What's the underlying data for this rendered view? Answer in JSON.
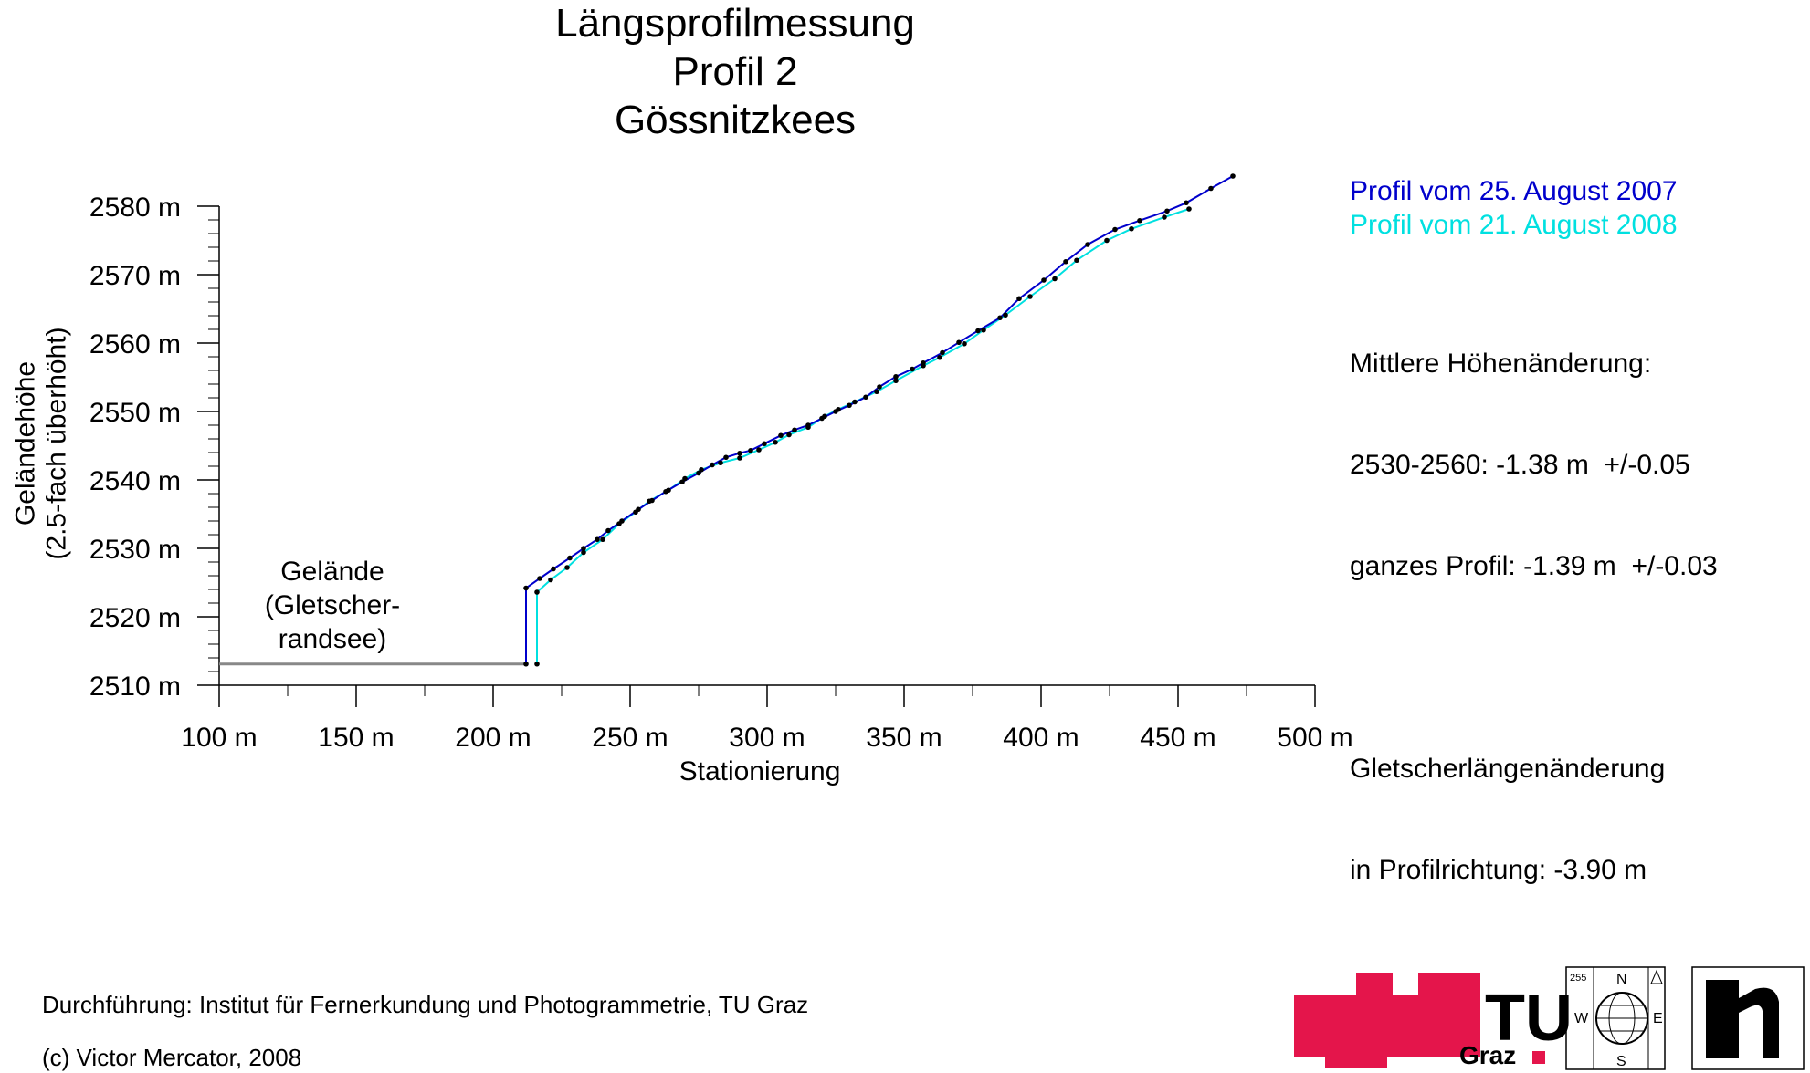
{
  "chart_data": {
    "type": "line",
    "title": [
      "Längsprofilmessung",
      "Profil 2",
      "Gössnitzkees"
    ],
    "xlabel": "Stationierung",
    "ylabel": [
      "Geländehöhe",
      "(2.5-fach überhöht)"
    ],
    "xlim": [
      100,
      500
    ],
    "ylim": [
      2510,
      2580
    ],
    "x_ticks": [
      100,
      150,
      200,
      250,
      300,
      350,
      400,
      450,
      500
    ],
    "x_tick_labels": [
      "100 m",
      "150 m",
      "200 m",
      "250 m",
      "300 m",
      "350 m",
      "400 m",
      "450 m",
      "500 m"
    ],
    "y_ticks": [
      2510,
      2520,
      2530,
      2540,
      2550,
      2560,
      2570,
      2580
    ],
    "y_tick_labels": [
      "2510 m",
      "2520 m",
      "2530 m",
      "2540 m",
      "2550 m",
      "2560 m",
      "2570 m",
      "2580 m"
    ],
    "grid": false,
    "legend_position": "top-right",
    "series": [
      {
        "name": "Profil vom 25. August 2007",
        "color": "#0000cc",
        "points": [
          [
            212,
            2513.1
          ],
          [
            212,
            2524.2
          ],
          [
            217,
            2525.6
          ],
          [
            222,
            2527.0
          ],
          [
            228,
            2528.6
          ],
          [
            233,
            2530.0
          ],
          [
            238,
            2531.3
          ],
          [
            242,
            2532.6
          ],
          [
            247,
            2534.0
          ],
          [
            253,
            2535.7
          ],
          [
            258,
            2537.0
          ],
          [
            263,
            2538.3
          ],
          [
            269,
            2539.7
          ],
          [
            275,
            2541.0
          ],
          [
            280,
            2542.2
          ],
          [
            285,
            2543.3
          ],
          [
            290,
            2543.9
          ],
          [
            294,
            2544.3
          ],
          [
            299,
            2545.3
          ],
          [
            305,
            2546.5
          ],
          [
            310,
            2547.3
          ],
          [
            315,
            2548.0
          ],
          [
            320,
            2549.0
          ],
          [
            325,
            2550.0
          ],
          [
            330,
            2550.9
          ],
          [
            336,
            2552.1
          ],
          [
            341,
            2553.6
          ],
          [
            347,
            2555.1
          ],
          [
            353,
            2556.2
          ],
          [
            357,
            2557.1
          ],
          [
            364,
            2558.6
          ],
          [
            370,
            2560.1
          ],
          [
            377,
            2561.8
          ],
          [
            385,
            2563.7
          ],
          [
            392,
            2566.5
          ],
          [
            401,
            2569.2
          ],
          [
            409,
            2571.9
          ],
          [
            417,
            2574.4
          ],
          [
            427,
            2576.6
          ],
          [
            436,
            2577.9
          ],
          [
            446,
            2579.3
          ],
          [
            453,
            2580.5
          ],
          [
            462,
            2582.6
          ],
          [
            470,
            2584.4
          ]
        ]
      },
      {
        "name": "Profil vom 21. August 2008",
        "color": "#00e0e0",
        "points": [
          [
            216,
            2513.1
          ],
          [
            216,
            2523.6
          ],
          [
            221,
            2525.4
          ],
          [
            227,
            2527.2
          ],
          [
            233,
            2529.4
          ],
          [
            240,
            2531.3
          ],
          [
            246,
            2533.6
          ],
          [
            252,
            2535.3
          ],
          [
            257,
            2536.9
          ],
          [
            264,
            2538.5
          ],
          [
            270,
            2540.2
          ],
          [
            276,
            2541.5
          ],
          [
            283,
            2542.5
          ],
          [
            290,
            2543.2
          ],
          [
            297,
            2544.4
          ],
          [
            303,
            2545.5
          ],
          [
            308,
            2546.6
          ],
          [
            315,
            2547.7
          ],
          [
            321,
            2549.3
          ],
          [
            326,
            2550.3
          ],
          [
            332,
            2551.4
          ],
          [
            340,
            2552.9
          ],
          [
            347,
            2554.5
          ],
          [
            357,
            2556.7
          ],
          [
            363,
            2557.9
          ],
          [
            372,
            2559.9
          ],
          [
            379,
            2561.9
          ],
          [
            387,
            2564.1
          ],
          [
            396,
            2566.8
          ],
          [
            405,
            2569.4
          ],
          [
            413,
            2572.1
          ],
          [
            424,
            2575.0
          ],
          [
            433,
            2576.7
          ],
          [
            445,
            2578.4
          ],
          [
            454,
            2579.6
          ]
        ]
      },
      {
        "name": "Gelände (Gletscher-randsee)",
        "color": "#888888",
        "points": [
          [
            100,
            2513.1
          ],
          [
            212,
            2513.1
          ]
        ]
      }
    ],
    "annotations": [
      "Gelände",
      "(Gletscher-",
      "randsee)"
    ],
    "info": {
      "mean_change_heading": "Mittlere Höhenänderung:",
      "range_line": "2530-2560: -1.38 m  +/-0.05",
      "profile_line": "ganzes Profil: -1.39 m  +/-0.03",
      "length_heading": "Gletscherlängenänderung",
      "length_line": "in Profilrichtung: -3.90 m"
    }
  },
  "footer": {
    "credit": "Durchführung: Institut für Fernerkundung und Photogrammetrie, TU Graz",
    "copyright": "(c) Victor Mercator, 2008"
  },
  "logos": {
    "tu_letters": "TU",
    "tu_city": "Graz",
    "tu_color": "#e4154b",
    "compass": {
      "n": "N",
      "s": "S",
      "w": "W",
      "e": "E",
      "code": "255"
    }
  }
}
